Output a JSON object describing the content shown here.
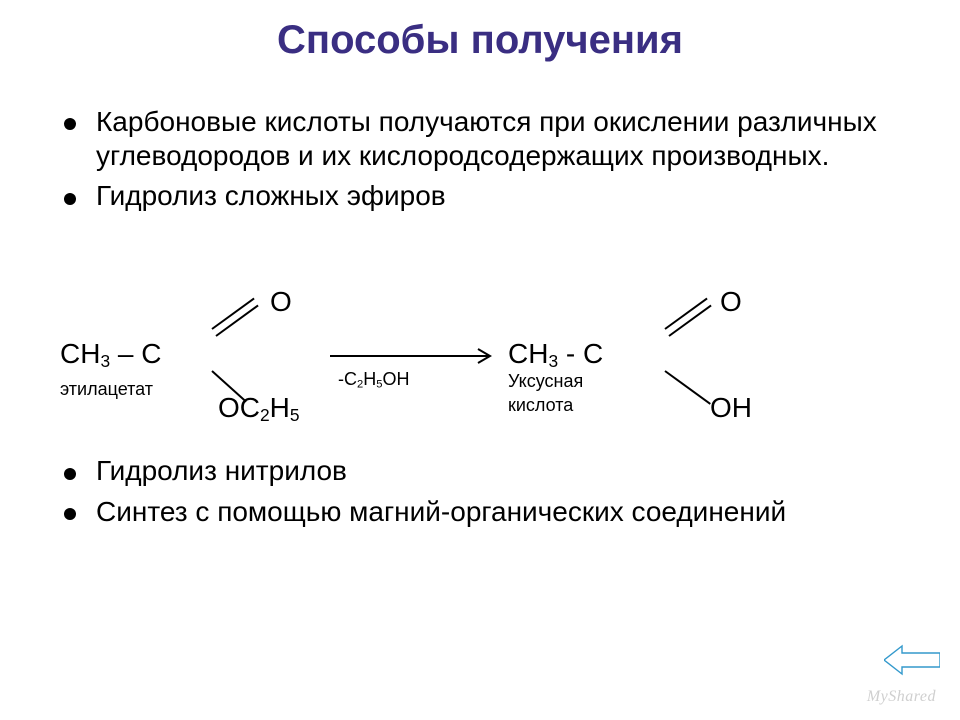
{
  "title": {
    "text": "Способы получения",
    "color": "#3a2e82",
    "fontsize": 40
  },
  "body_fontsize": 28,
  "bullets": {
    "b1": "Карбоновые кислоты получаются при окислении различных углеводородов и их кислородсодержащих производных.",
    "b2": "Гидролиз сложных эфиров",
    "b3": "Гидролиз нитрилов",
    "b4": "Синтез с помощью магний-органических соединений"
  },
  "reaction": {
    "fontsize": 28,
    "small_fontsize": 18,
    "left": {
      "top_O": "О",
      "core": "СН<sub>3</sub> – С",
      "bottom": "ОС<sub>2</sub>Н<sub>5</sub>",
      "label": "этилацетат"
    },
    "arrow": {
      "reagent": "-С<sub>2</sub>Н<sub>5</sub>ОН",
      "color": "#000000"
    },
    "right": {
      "top_O": "О",
      "core": "СН<sub>3</sub>  - С",
      "bottom": "ОН",
      "label1": "Уксусная",
      "label2": "кислота"
    },
    "bond": {
      "color": "#000000",
      "thickness": 2
    }
  },
  "backarrow": {
    "stroke": "#3399cc",
    "fill": "none"
  },
  "watermark": "MyShared"
}
